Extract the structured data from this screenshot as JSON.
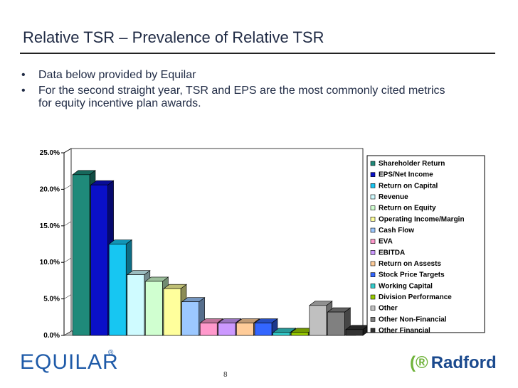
{
  "slide": {
    "title": "Relative TSR – Prevalence of Relative TSR",
    "bullets": [
      "Data below provided by Equilar",
      "For the second straight year, TSR and EPS are the most commonly cited metrics for equity incentive plan awards."
    ],
    "page_number": "8"
  },
  "logos": {
    "left_text": "EQUILAR",
    "left_reg": "®",
    "right_text": "Radford",
    "right_mark": "(®"
  },
  "chart_data": {
    "type": "bar",
    "ylim": [
      0,
      25
    ],
    "yticks": [
      "0.0%",
      "5.0%",
      "10.0%",
      "15.0%",
      "20.0%",
      "25.0%"
    ],
    "ytick_values": [
      0,
      5,
      10,
      15,
      20,
      25
    ],
    "legend_position": "right",
    "grid": false,
    "series": [
      {
        "name": "Shareholder Return",
        "value": 22.0,
        "color": "#1f8a7a"
      },
      {
        "name": "EPS/Net Income",
        "value": 20.6,
        "color": "#0a10c8"
      },
      {
        "name": "Return on Capital",
        "value": 12.5,
        "color": "#17c6f2"
      },
      {
        "name": "Revenue",
        "value": 8.3,
        "color": "#cffbff"
      },
      {
        "name": "Return on Equity",
        "value": 7.4,
        "color": "#d0ffd0"
      },
      {
        "name": "Operating Income/Margin",
        "value": 6.4,
        "color": "#ffff9c"
      },
      {
        "name": "Cash Flow",
        "value": 4.6,
        "color": "#9cc8ff"
      },
      {
        "name": "EVA",
        "value": 1.7,
        "color": "#ff99cc"
      },
      {
        "name": "EBITDA",
        "value": 1.7,
        "color": "#cc99ff"
      },
      {
        "name": "Return on Assests",
        "value": 1.7,
        "color": "#ffcc99"
      },
      {
        "name": "Stock Price Targets",
        "value": 1.7,
        "color": "#3366ff"
      },
      {
        "name": "Working Capital",
        "value": 0.4,
        "color": "#33cccc"
      },
      {
        "name": "Division Performance",
        "value": 0.4,
        "color": "#99cc00"
      },
      {
        "name": "Other",
        "value": 4.1,
        "color": "#c0c0c0"
      },
      {
        "name": "Other Non-Financial",
        "value": 3.2,
        "color": "#808080"
      },
      {
        "name": "Other Financial",
        "value": 0.8,
        "color": "#333333"
      }
    ]
  }
}
